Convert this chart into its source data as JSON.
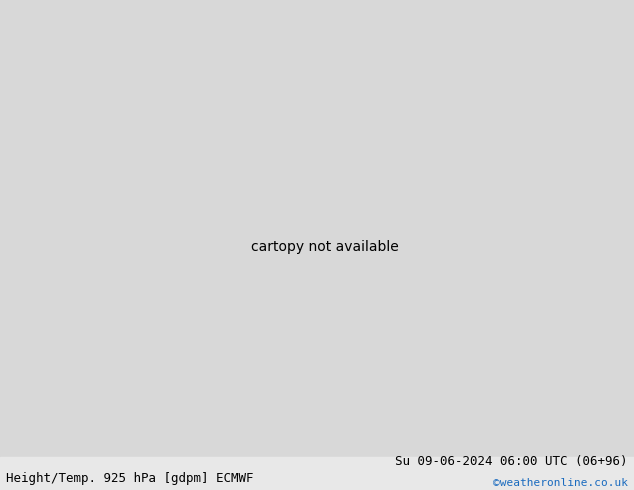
{
  "title_left": "Height/Temp. 925 hPa [gdpm] ECMWF",
  "title_right": "Su 09-06-2024 06:00 UTC (06+96)",
  "credit": "©weatheronline.co.uk",
  "bg_color": "#d8d8d8",
  "land_color": "#b3e688",
  "ocean_color": "#d8d8d8",
  "coast_color": "#888888",
  "fig_width": 6.34,
  "fig_height": 4.9,
  "dpi": 100,
  "bottom_text_color": "#000000",
  "credit_color": "#1a6bbf",
  "font_size_bottom": 9,
  "font_size_credit": 8,
  "red_color": "#e00000",
  "magenta_color": "#e000a0",
  "black_color": "#000000",
  "orange_color": "#e08000"
}
